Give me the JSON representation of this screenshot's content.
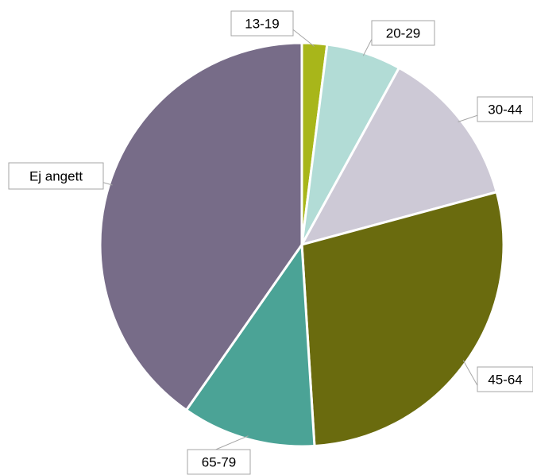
{
  "chart_data": {
    "type": "pie",
    "categories": [
      "13-19",
      "20-29",
      "30-44",
      "45-64",
      "65-79",
      "Ej angett"
    ],
    "values": [
      2.0,
      6.0,
      12.8,
      28.2,
      10.7,
      40.3
    ],
    "colors": [
      "#a8b61a",
      "#b2dcd6",
      "#cdc9d6",
      "#6a6b0e",
      "#4ba396",
      "#776c88"
    ],
    "legend": "none"
  }
}
